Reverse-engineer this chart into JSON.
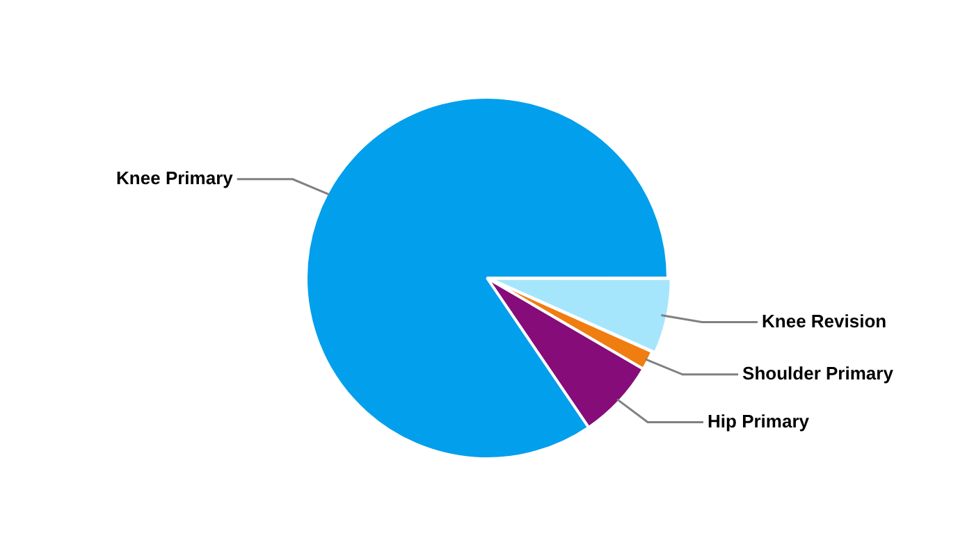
{
  "chart_data": {
    "type": "pie",
    "categories": [
      "Knee Revision",
      "Shoulder Primary",
      "Hip Primary",
      "Knee Primary"
    ],
    "values": [
      6.7,
      1.7,
      7.1,
      84.5
    ],
    "colors": [
      "#a6e6fd",
      "#f07d10",
      "#850c79",
      "#029fec"
    ],
    "legend": false
  }
}
